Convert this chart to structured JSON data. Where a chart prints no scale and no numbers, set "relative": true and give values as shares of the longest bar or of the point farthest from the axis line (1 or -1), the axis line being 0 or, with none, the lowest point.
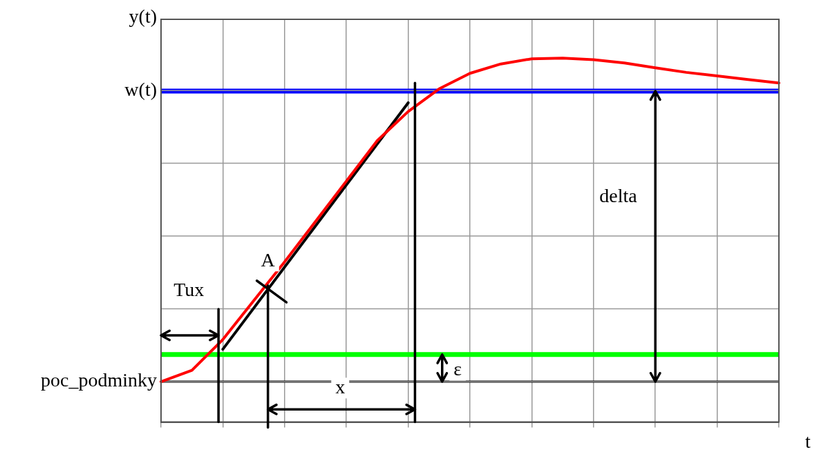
{
  "chart_data": {
    "type": "line",
    "relative": true,
    "ylabel": "y(t)",
    "xlabel": "t",
    "categories": [
      null,
      null,
      null,
      null,
      null,
      null,
      null,
      null,
      null,
      null,
      null,
      null,
      null,
      null,
      null,
      null,
      null,
      null,
      null,
      null,
      null
    ],
    "grid": true,
    "legend": false,
    "marker": "none",
    "line_style": "solid",
    "series": [
      {
        "type": "line",
        "color": "#ff0000",
        "values": [
          0,
          0.035,
          0.13,
          0.25,
          0.37,
          0.495,
          0.62,
          0.745,
          0.835,
          0.905,
          0.953,
          0.982,
          0.998,
          1,
          0.995,
          0.985,
          0.97,
          0.956,
          0.945,
          0.934,
          0.923
        ]
      },
      {
        "type": "line",
        "color": "#000000",
        "values": [
          null,
          null,
          0.1,
          null,
          null,
          null,
          null,
          null,
          0.862,
          null,
          null,
          null,
          null,
          null,
          null,
          null,
          null,
          null,
          null,
          null,
          null
        ]
      }
    ],
    "ref_lines": [
      {
        "axis": "y",
        "value": 0,
        "label": "poc_podminky",
        "color": "#000000"
      },
      {
        "axis": "y",
        "value": 0.898,
        "label": "w(t)",
        "color": "#0000ff"
      },
      {
        "axis": "y",
        "value": 0.0835,
        "label": null,
        "color": "#00ff00"
      }
    ],
    "annotations": [
      "Tux",
      "A",
      "x",
      "ε",
      "delta"
    ]
  }
}
